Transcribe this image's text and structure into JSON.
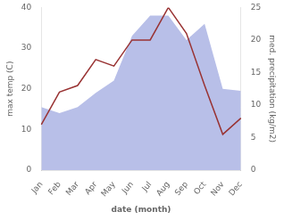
{
  "chart_data": {
    "type": "line",
    "categories": [
      "Jan",
      "Feb",
      "Mar",
      "Apr",
      "May",
      "Jun",
      "Jul",
      "Aug",
      "Sep",
      "Oct",
      "Nov",
      "Dec"
    ],
    "xlabel": "date (month)",
    "ylabel": "max temp (C)",
    "y2label": "med. precipitation (kg/m2)",
    "series": [
      {
        "type": "area",
        "color": "#b8bfe8",
        "values": [
          15.5,
          14.0,
          15.5,
          19.0,
          22.0,
          33.0,
          38.0,
          38.0,
          32.0,
          36.0,
          20.0,
          19.5
        ]
      },
      {
        "type": "line",
        "color": "#993333",
        "axis": "y2",
        "values": [
          7.0,
          12.0,
          13.0,
          17.0,
          16.0,
          20.0,
          20.0,
          25.0,
          21.0,
          13.0,
          5.5,
          8.0
        ]
      }
    ],
    "ylim": [
      0,
      40
    ],
    "yticks": [
      0,
      10,
      20,
      30,
      40
    ],
    "y2lim": [
      0,
      25
    ],
    "y2ticks": [
      0,
      5,
      10,
      15,
      20,
      25
    ],
    "grid": false
  }
}
